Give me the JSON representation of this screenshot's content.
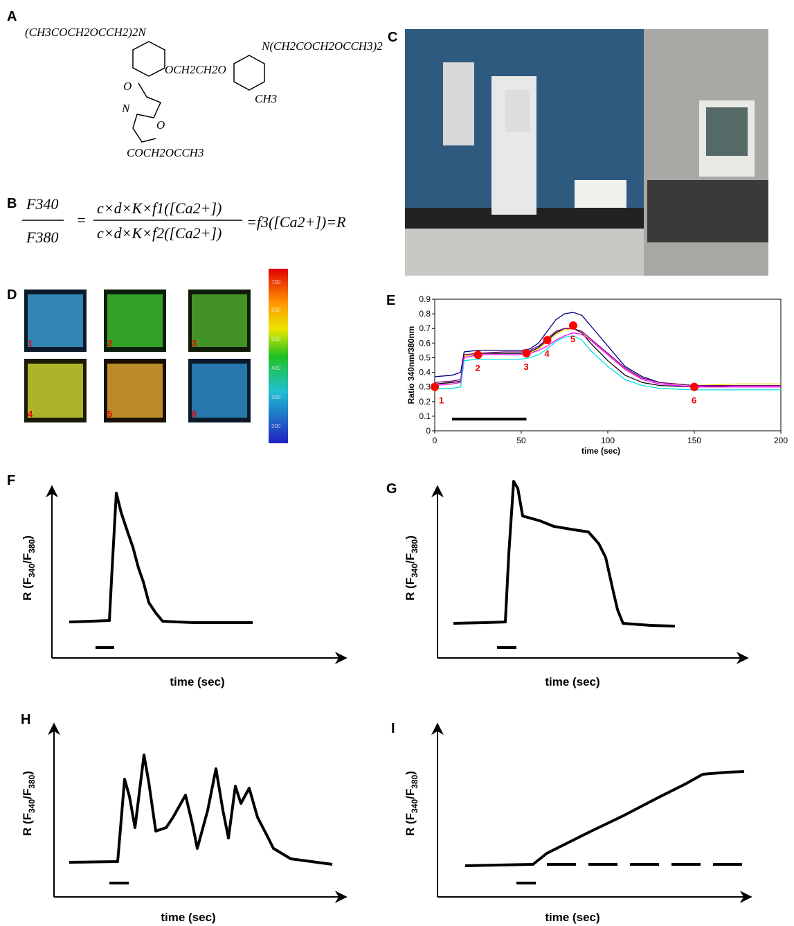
{
  "panels": {
    "A": "A",
    "B": "B",
    "C": "C",
    "D": "D",
    "E": "E",
    "F": "F",
    "G": "G",
    "H": "H",
    "I": "I"
  },
  "structure": {
    "fragments": [
      "(CH3COCH2OCCH2)2N",
      "N(CH2COCH2OCCH3)2",
      "OCH2CH2O",
      "CH3",
      "COCH2OCCH3",
      "O",
      "N",
      "O"
    ]
  },
  "equation": {
    "numerator_left": "F340",
    "denominator_left": "F380",
    "equals": "=",
    "numerator_right": "c×d×K×f1([Ca2+])",
    "denominator_right": "c×d×K×f2([Ca2+])",
    "result": "=f3([Ca2+])=R"
  },
  "panel_d": {
    "image_labels": [
      "1",
      "2",
      "3",
      "4",
      "5",
      "6"
    ],
    "colorbar_ticks": [
      "700",
      "600",
      "500",
      "400",
      "300",
      "200"
    ]
  },
  "chart_data": {
    "type": "line",
    "ylabel": "Ratio 340nm/380nm",
    "xlabel": "time (sec)",
    "x": [
      0,
      10,
      15,
      17,
      25,
      40,
      50,
      55,
      60,
      65,
      70,
      75,
      80,
      85,
      90,
      100,
      110,
      120,
      130,
      150,
      175,
      200
    ],
    "series": [
      {
        "color": "#000080",
        "values": [
          0.37,
          0.38,
          0.4,
          0.54,
          0.55,
          0.55,
          0.55,
          0.56,
          0.6,
          0.68,
          0.76,
          0.8,
          0.81,
          0.79,
          0.72,
          0.58,
          0.44,
          0.37,
          0.33,
          0.31,
          0.31,
          0.31
        ]
      },
      {
        "color": "#000000",
        "values": [
          0.32,
          0.33,
          0.34,
          0.52,
          0.53,
          0.53,
          0.53,
          0.54,
          0.57,
          0.62,
          0.67,
          0.7,
          0.7,
          0.67,
          0.6,
          0.48,
          0.38,
          0.33,
          0.31,
          0.3,
          0.31,
          0.31
        ]
      },
      {
        "color": "#e8d800",
        "values": [
          0.31,
          0.32,
          0.33,
          0.51,
          0.52,
          0.52,
          0.52,
          0.53,
          0.56,
          0.61,
          0.66,
          0.69,
          0.7,
          0.68,
          0.62,
          0.52,
          0.42,
          0.36,
          0.33,
          0.31,
          0.32,
          0.32
        ]
      },
      {
        "color": "#800080",
        "values": [
          0.33,
          0.34,
          0.35,
          0.52,
          0.53,
          0.54,
          0.54,
          0.55,
          0.58,
          0.63,
          0.68,
          0.7,
          0.7,
          0.68,
          0.63,
          0.53,
          0.43,
          0.36,
          0.33,
          0.31,
          0.31,
          0.31
        ]
      },
      {
        "color": "#ff00ff",
        "values": [
          0.31,
          0.32,
          0.33,
          0.5,
          0.52,
          0.52,
          0.52,
          0.53,
          0.55,
          0.58,
          0.62,
          0.65,
          0.67,
          0.66,
          0.62,
          0.52,
          0.42,
          0.35,
          0.32,
          0.3,
          0.3,
          0.3
        ]
      },
      {
        "color": "#00e0e0",
        "values": [
          0.29,
          0.29,
          0.3,
          0.48,
          0.49,
          0.49,
          0.49,
          0.5,
          0.52,
          0.56,
          0.61,
          0.64,
          0.65,
          0.62,
          0.55,
          0.44,
          0.35,
          0.31,
          0.29,
          0.28,
          0.28,
          0.28
        ]
      }
    ],
    "points": {
      "x": [
        0,
        25,
        53,
        65,
        80,
        150
      ],
      "y": [
        0.3,
        0.52,
        0.53,
        0.62,
        0.72,
        0.3
      ],
      "labels": [
        "1",
        "2",
        "3",
        "4",
        "5",
        "6"
      ],
      "color": "#ff0000"
    },
    "stimulus": {
      "x": [
        10,
        53
      ],
      "y": 0.08
    },
    "xlim": [
      0,
      200
    ],
    "ylim": [
      0,
      0.9
    ],
    "xticks": [
      0,
      50,
      100,
      150,
      200
    ],
    "yticks": [
      0,
      0.1,
      0.2,
      0.3,
      0.4,
      0.5,
      0.6,
      0.7,
      0.8,
      0.9
    ]
  },
  "schematics": [
    {
      "ylabel": {
        "a": "R (F",
        "b": "340",
        "c": "/F",
        "d": "380",
        "e": ")"
      },
      "xlabel": "time (sec)"
    },
    {
      "ylabel": {
        "a": "R (F",
        "b": "340",
        "c": "/F",
        "d": "380",
        "e": ")"
      },
      "xlabel": "time (sec)"
    },
    {
      "ylabel": {
        "a": "R (F",
        "b": "340",
        "c": "/F",
        "d": "380",
        "e": ")"
      },
      "xlabel": "time (sec)"
    },
    {
      "ylabel": {
        "a": "R (F",
        "b": "340",
        "c": "/F",
        "d": "380",
        "e": ")"
      },
      "xlabel": "time (sec)"
    }
  ]
}
